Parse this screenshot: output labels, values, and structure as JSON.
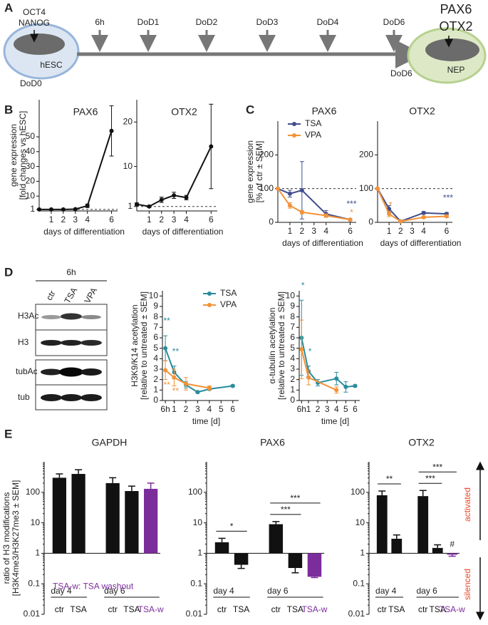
{
  "panels": [
    "A",
    "B",
    "C",
    "D",
    "E"
  ],
  "timeline": {
    "start_cell": {
      "markers": [
        "OCT4",
        "NANOG"
      ],
      "label": "hESC"
    },
    "timepoints": [
      "6h",
      "DoD1",
      "DoD2",
      "DoD3",
      "DoD4",
      "DoD6"
    ],
    "start": "DoD0",
    "end": "DoD6",
    "end_cell": {
      "markers": [
        "PAX6",
        "OTX2"
      ],
      "label": "NEP"
    }
  },
  "blot": {
    "title": "6h",
    "lanes": [
      "ctr",
      "TSA",
      "VPA"
    ],
    "rows": [
      "H3Ac",
      "H3",
      "tubAc",
      "tub"
    ]
  },
  "arrows": {
    "up": "activated",
    "down": "silenced"
  },
  "chart_data": [
    {
      "type": "line",
      "title": "PAX6",
      "xlabel": "days of differentiation",
      "ylabel": [
        "gene expression",
        "[fold changes vs hESC]"
      ],
      "xlim": [
        0,
        6.5
      ],
      "xticks": [
        1,
        2,
        3,
        4,
        6
      ],
      "ylim": [
        0,
        75
      ],
      "yticks": [
        1,
        10,
        20,
        30,
        40,
        50
      ],
      "reference_line": 1,
      "series": [
        {
          "color": "#111111",
          "x": [
            0,
            1,
            2,
            3,
            4,
            6
          ],
          "values": [
            1,
            1,
            1,
            1.2,
            3.5,
            54
          ],
          "errors": [
            0.3,
            0.2,
            0.2,
            0.4,
            1.2,
            17
          ]
        }
      ]
    },
    {
      "type": "line",
      "title": "OTX2",
      "xlabel": "days of differentiation",
      "xlim": [
        0,
        6.5
      ],
      "xticks": [
        1,
        2,
        3,
        4,
        6
      ],
      "ylim": [
        0,
        25
      ],
      "yticks": [
        1,
        10,
        20
      ],
      "reference_line": 1,
      "series": [
        {
          "color": "#111111",
          "x": [
            0,
            1,
            2,
            3,
            4,
            6
          ],
          "values": [
            1.5,
            1,
            2.5,
            3.5,
            3,
            14.5
          ],
          "errors": [
            0.3,
            0.2,
            0.6,
            0.7,
            0.5,
            9.5
          ]
        }
      ]
    },
    {
      "type": "line",
      "title": "PAX6",
      "xlabel": "days of differentiation",
      "ylabel": [
        "gene expression",
        "[% of ctr ± SEM]"
      ],
      "xlim": [
        0,
        6.5
      ],
      "xticks": [
        1,
        2,
        3,
        4,
        6
      ],
      "ylim": [
        0,
        300
      ],
      "yticks": [
        0,
        100,
        200
      ],
      "reference_line": 100,
      "legend": "top-left",
      "series": [
        {
          "name": "TSA",
          "color": "#414d8d",
          "x": [
            0,
            1,
            2,
            4,
            6
          ],
          "values": [
            100,
            85,
            95,
            25,
            8
          ],
          "errors": [
            0,
            10,
            85,
            10,
            3
          ]
        },
        {
          "name": "VPA",
          "color": "#f39237",
          "x": [
            0,
            1,
            2,
            4,
            6
          ],
          "values": [
            100,
            50,
            30,
            20,
            8
          ],
          "errors": [
            0,
            8,
            5,
            5,
            3
          ]
        }
      ],
      "annotations": [
        {
          "text": "***",
          "series": 0,
          "index": 4
        },
        {
          "text": "*",
          "series": 1,
          "index": 4
        }
      ]
    },
    {
      "type": "line",
      "title": "OTX2",
      "xlabel": "days of differentiation",
      "xlim": [
        0,
        6.5
      ],
      "xticks": [
        1,
        2,
        3,
        4,
        6
      ],
      "ylim": [
        0,
        300
      ],
      "yticks": [
        0,
        100,
        200
      ],
      "reference_line": 100,
      "series": [
        {
          "name": "TSA",
          "color": "#414d8d",
          "x": [
            0,
            1,
            2,
            4,
            6
          ],
          "values": [
            100,
            40,
            3,
            28,
            25
          ],
          "errors": [
            0,
            10,
            2,
            4,
            4
          ]
        },
        {
          "name": "VPA",
          "color": "#f39237",
          "x": [
            0,
            1,
            2,
            4,
            6
          ],
          "values": [
            100,
            25,
            3,
            15,
            18
          ],
          "errors": [
            0,
            8,
            2,
            3,
            4
          ]
        }
      ],
      "annotations": [
        {
          "text": "***",
          "series": 0,
          "index": 4
        },
        {
          "text": "*",
          "series": 1,
          "index": 1
        }
      ]
    },
    {
      "type": "line",
      "xlabel": "time [d]",
      "ylabel": [
        "H3K9/K14 acetylation",
        "[relative to untreated ± SEM]"
      ],
      "xlim": [
        0,
        6.5
      ],
      "xticks": [
        {
          "value": 0.25,
          "label": "6h"
        },
        1,
        2,
        3,
        4,
        5,
        6
      ],
      "ylim": [
        0,
        10.5
      ],
      "yticks": [
        0,
        1,
        2,
        3,
        4,
        5,
        6,
        7,
        8,
        9,
        10
      ],
      "legend": "top-right",
      "series": [
        {
          "name": "TSA",
          "color": "#2a8c9c",
          "x": [
            0.25,
            1,
            2,
            3,
            4,
            6
          ],
          "values": [
            5,
            2.7,
            1.5,
            0.8,
            1.1,
            1.4
          ],
          "errors": [
            1.2,
            0.6,
            0.3,
            0.1,
            0.1,
            0.1
          ]
        },
        {
          "name": "VPA",
          "color": "#f39237",
          "x": [
            0.25,
            1,
            2,
            4
          ],
          "values": [
            2.9,
            2.2,
            1.6,
            1.2
          ],
          "errors": [
            0.9,
            0.8,
            0.6,
            0.2
          ]
        }
      ],
      "annotations": [
        {
          "text": "**",
          "series": 0,
          "index": 0
        },
        {
          "text": "**",
          "series": 0,
          "index": 1
        },
        {
          "text": "**",
          "series": 1,
          "index": 0,
          "side": "below"
        },
        {
          "text": "**",
          "series": 1,
          "index": 1,
          "side": "below"
        }
      ]
    },
    {
      "type": "line",
      "xlabel": "time [d]",
      "ylabel": [
        "α-tubulin acetylation",
        "[relative to untreated ± SEM]"
      ],
      "xlim": [
        0,
        6.5
      ],
      "xticks": [
        {
          "value": 0.25,
          "label": "6h"
        },
        1,
        2,
        3,
        4,
        5,
        6
      ],
      "ylim": [
        0,
        10.5
      ],
      "yticks": [
        0,
        1,
        2,
        3,
        4,
        5,
        6,
        7,
        8,
        9,
        10
      ],
      "series": [
        {
          "name": "TSA",
          "color": "#2a8c9c",
          "x": [
            0.25,
            1,
            2,
            4,
            5,
            6
          ],
          "values": [
            6,
            2.8,
            1.7,
            2.1,
            1.3,
            1.4
          ],
          "errors": [
            3.6,
            0.5,
            0.3,
            0.6,
            0.5,
            0.1
          ]
        },
        {
          "name": "VPA",
          "color": "#f39237",
          "x": [
            0.25,
            1,
            4
          ],
          "values": [
            4.9,
            2.2,
            1
          ],
          "errors": [
            2.8,
            0.7,
            0.3
          ]
        }
      ],
      "annotations": [
        {
          "text": "*",
          "series": 0,
          "index": 0
        },
        {
          "text": "*",
          "series": 0,
          "index": 1
        }
      ]
    },
    {
      "type": "bar",
      "title": "GAPDH",
      "ylabel": [
        "ratio of H3 modifications",
        "[H3K4me3/H3K27me3 ± SEM]"
      ],
      "log_scale": true,
      "ylim": [
        0.01,
        1000
      ],
      "yticks": [
        0.01,
        0.1,
        1,
        10,
        100
      ],
      "bar_base": 1,
      "categories": [
        "ctr",
        "TSA",
        "ctr",
        "TSA",
        "TSA-w"
      ],
      "groups": [
        {
          "label": "day 4",
          "size": 2
        },
        {
          "label": "day 6",
          "size": 3
        }
      ],
      "values": [
        300,
        400,
        200,
        110,
        130
      ],
      "errors": [
        100,
        150,
        100,
        50,
        70
      ],
      "colors": [
        "#111111",
        "#111111",
        "#111111",
        "#111111",
        "#7b2d9b"
      ],
      "note": "TSA-w: TSA washout",
      "note_color": "#7b2d9b"
    },
    {
      "type": "bar",
      "title": "PAX6",
      "log_scale": true,
      "ylim": [
        0.01,
        1000
      ],
      "yticks": [
        0.01,
        0.1,
        1,
        10,
        100
      ],
      "bar_base": 1,
      "categories": [
        "ctr",
        "TSA",
        "ctr",
        "TSA",
        "TSA-w"
      ],
      "groups": [
        {
          "label": "day 4",
          "size": 2
        },
        {
          "label": "day 6",
          "size": 3
        }
      ],
      "values": [
        2.3,
        0.42,
        9,
        0.33,
        0.17
      ],
      "errors": [
        0.8,
        0.1,
        2,
        0.1,
        0.01
      ],
      "colors": [
        "#111111",
        "#111111",
        "#111111",
        "#111111",
        "#7b2d9b"
      ],
      "significance": [
        {
          "text": "*",
          "from": 0,
          "to": 1
        },
        {
          "text": "***",
          "from": 2,
          "to": 3
        },
        {
          "text": "***",
          "from": 2,
          "to": 4
        }
      ]
    },
    {
      "type": "bar",
      "title": "OTX2",
      "log_scale": true,
      "ylim": [
        0.01,
        1000
      ],
      "yticks": [
        0.01,
        0.1,
        1,
        10,
        100
      ],
      "bar_base": 1,
      "categories": [
        "ctr",
        "TSA",
        "ctr",
        "TSA",
        "TSA-w"
      ],
      "groups": [
        {
          "label": "day 4",
          "size": 2
        },
        {
          "label": "day 6",
          "size": 3
        }
      ],
      "values": [
        80,
        3,
        75,
        1.5,
        0.9
      ],
      "errors": [
        30,
        1,
        40,
        0.4,
        0.1
      ],
      "colors": [
        "#111111",
        "#111111",
        "#111111",
        "#111111",
        "#7b2d9b"
      ],
      "significance": [
        {
          "text": "**",
          "from": 0,
          "to": 1
        },
        {
          "text": "***",
          "from": 2,
          "to": 3
        },
        {
          "text": "***",
          "from": 2,
          "to": 4
        },
        {
          "text": "#",
          "from": 4,
          "to": 4
        }
      ]
    }
  ]
}
